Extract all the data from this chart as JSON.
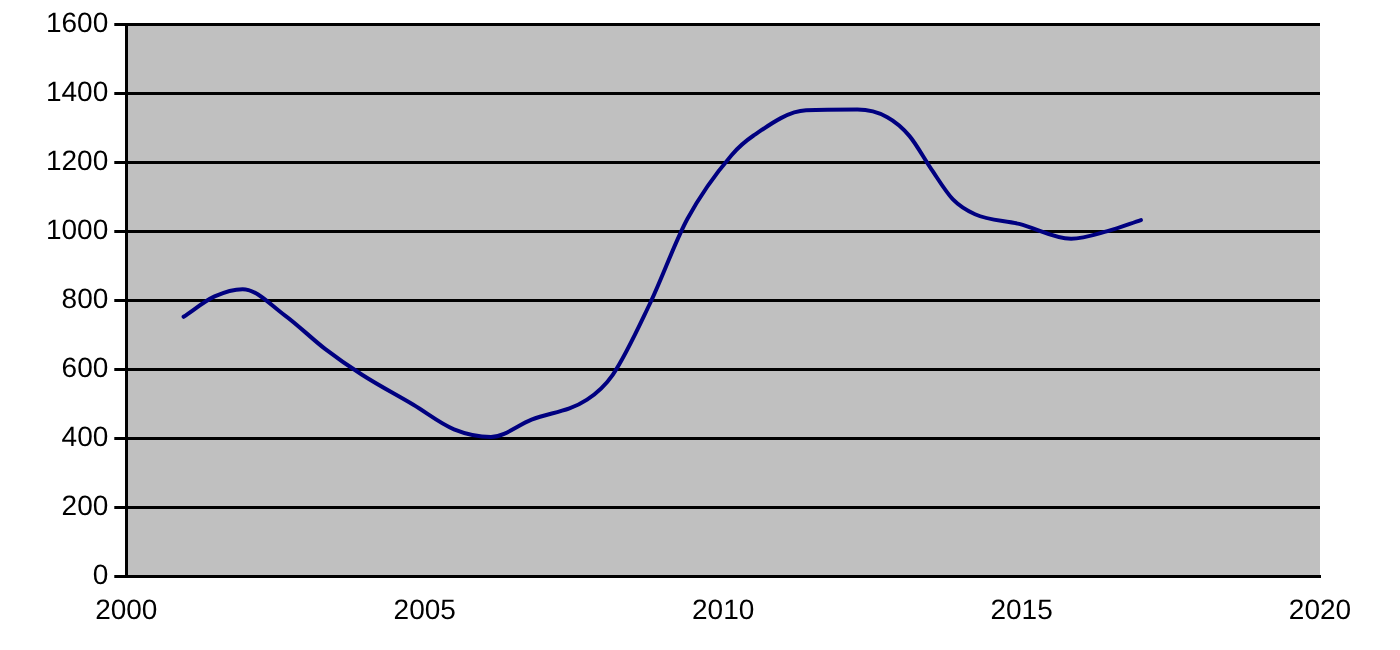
{
  "chart_data": {
    "type": "line",
    "x": [
      2000.96,
      2001.48,
      2001.95,
      2002.65,
      2003.33,
      2003.95,
      2004.81,
      2005.49,
      2006.11,
      2006.79,
      2007.72,
      2008.15,
      2008.77,
      2009.4,
      2010.14,
      2010.51,
      2011.39,
      2012.25,
      2012.75,
      2013.12,
      2013.49,
      2013.85,
      2014.22,
      2014.96,
      2015.83,
      2016.44,
      2017.0
    ],
    "series": [
      {
        "color": "#000080",
        "values": [
          752,
          811,
          832,
          757,
          659,
          584,
          497,
          426,
          404,
          454,
          512,
          584,
          789,
          1035,
          1220,
          1277,
          1350,
          1352,
          1330,
          1276,
          1179,
          1092,
          1049,
          1021,
          978,
          1000,
          1032
        ]
      }
    ],
    "xlim": [
      2000,
      2020
    ],
    "xticks": [
      2000,
      2005,
      2010,
      2015,
      2020
    ],
    "ylim": [
      0,
      1600
    ],
    "yticks": [
      0,
      200,
      400,
      600,
      800,
      1000,
      1200,
      1400,
      1600
    ],
    "grid": "y",
    "marker": "none",
    "line_style": "solid",
    "legend": false
  }
}
